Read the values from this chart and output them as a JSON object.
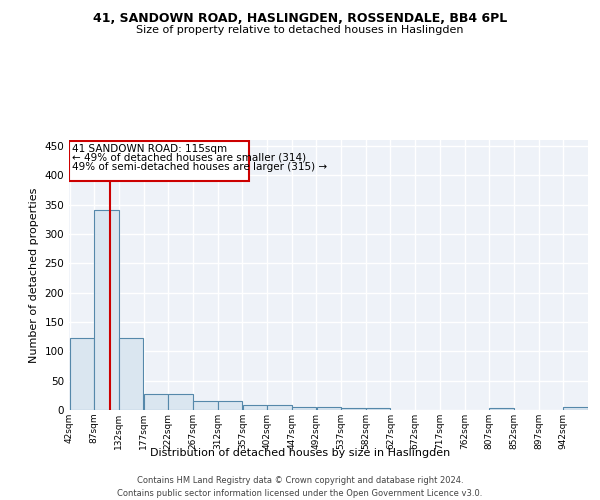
{
  "title": "41, SANDOWN ROAD, HASLINGDEN, ROSSENDALE, BB4 6PL",
  "subtitle": "Size of property relative to detached houses in Haslingden",
  "xlabel": "Distribution of detached houses by size in Haslingden",
  "ylabel": "Number of detached properties",
  "bar_color": "#dae6f0",
  "bar_edge_color": "#5588aa",
  "background_color": "#eef2f8",
  "grid_color": "#ffffff",
  "annotation_line_color": "#cc0000",
  "annotation_property": "41 SANDOWN ROAD: 115sqm",
  "annotation_smaller": "← 49% of detached houses are smaller (314)",
  "annotation_larger": "49% of semi-detached houses are larger (315) →",
  "property_size": 115,
  "bin_edges": [
    42,
    87,
    132,
    177,
    222,
    267,
    312,
    357,
    402,
    447,
    492,
    537,
    582,
    627,
    672,
    717,
    762,
    807,
    852,
    897,
    942
  ],
  "bin_labels": [
    "42sqm",
    "87sqm",
    "132sqm",
    "177sqm",
    "222sqm",
    "267sqm",
    "312sqm",
    "357sqm",
    "402sqm",
    "447sqm",
    "492sqm",
    "537sqm",
    "582sqm",
    "627sqm",
    "672sqm",
    "717sqm",
    "762sqm",
    "807sqm",
    "852sqm",
    "897sqm",
    "942sqm"
  ],
  "bar_heights": [
    122,
    340,
    122,
    28,
    28,
    15,
    15,
    8,
    8,
    5,
    5,
    3,
    3,
    0,
    0,
    0,
    0,
    4,
    0,
    0,
    5
  ],
  "ylim": [
    0,
    460
  ],
  "yticks": [
    0,
    50,
    100,
    150,
    200,
    250,
    300,
    350,
    400,
    450
  ],
  "footer_line1": "Contains HM Land Registry data © Crown copyright and database right 2024.",
  "footer_line2": "Contains public sector information licensed under the Open Government Licence v3.0."
}
